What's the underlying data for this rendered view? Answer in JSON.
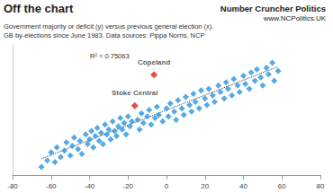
{
  "chart_data": {
    "type": "scatter",
    "title": "Off the chart",
    "subtitle": [
      "Government majority or deficit (y) versus previous general election (x).",
      "GB by-elections since June 1983. Data sources: Pippa Norris, NCP"
    ],
    "source": [
      "Number Cruncher Politics",
      "www.NCPolitics.UK"
    ],
    "note": "R² = 0.75063",
    "x": [
      -65,
      -62,
      -60,
      -58,
      -57,
      -55,
      -53,
      -52,
      -50,
      -49,
      -48,
      -46,
      -45,
      -44,
      -42,
      -41,
      -40,
      -39,
      -38,
      -37,
      -36,
      -35,
      -34,
      -33,
      -32,
      -31,
      -30,
      -29,
      -28,
      -27,
      -26,
      -25,
      -24,
      -23,
      -22,
      -21,
      -20,
      -19,
      -18,
      -15,
      -14,
      -13,
      -12,
      -10,
      -9,
      -8,
      -6,
      -5,
      -4,
      -2,
      0,
      1,
      2,
      4,
      5,
      6,
      8,
      9,
      10,
      12,
      13,
      14,
      15,
      17,
      18,
      20,
      21,
      22,
      24,
      25,
      27,
      28,
      30,
      31,
      32,
      34,
      35,
      37,
      38,
      40,
      41,
      43,
      44,
      46,
      47,
      49,
      50,
      52,
      53,
      55,
      56,
      58
    ],
    "values": [
      -50,
      -46,
      -41,
      -47,
      -38,
      -44,
      -40,
      -35,
      -43,
      -37,
      -32,
      -39,
      -34,
      -42,
      -30,
      -36,
      -33,
      -28,
      -38,
      -31,
      -26,
      -34,
      -29,
      -36,
      -24,
      -30,
      -27,
      -33,
      -22,
      -28,
      -31,
      -25,
      -20,
      -27,
      -23,
      -30,
      -19,
      -25,
      -22,
      -21,
      -27,
      -17,
      -23,
      -19,
      -15,
      -24,
      -20,
      -13,
      -18,
      -22,
      -14,
      -19,
      -11,
      -16,
      -21,
      -9,
      -14,
      -18,
      -7,
      -12,
      -16,
      -5,
      -10,
      -14,
      -3,
      -8,
      -12,
      -2,
      -6,
      -10,
      0,
      -4,
      -8,
      2,
      -2,
      -6,
      4,
      0,
      -4,
      6,
      1,
      -2,
      8,
      3,
      10,
      5,
      0,
      11,
      7,
      14,
      3,
      9
    ],
    "color": "#2a95e0",
    "marker": "diamond",
    "highlights": [
      {
        "text": "Copeland",
        "x": -6.5,
        "y": 6.7,
        "color": "#e0201c"
      },
      {
        "text": "Stoke Central",
        "x": -16.5,
        "y": -12.4,
        "color": "#e0201c"
      }
    ],
    "trendline": {
      "x": [
        -65,
        58
      ],
      "y": [
        -45,
        11.6
      ],
      "line_style": "dotted"
    },
    "xlim": [
      -80,
      80
    ],
    "xticks": [
      -80,
      -60,
      -40,
      -20,
      0,
      20,
      40,
      60,
      80
    ],
    "ylim": [
      -55,
      25
    ],
    "tick_labels": "x",
    "grid": false
  }
}
